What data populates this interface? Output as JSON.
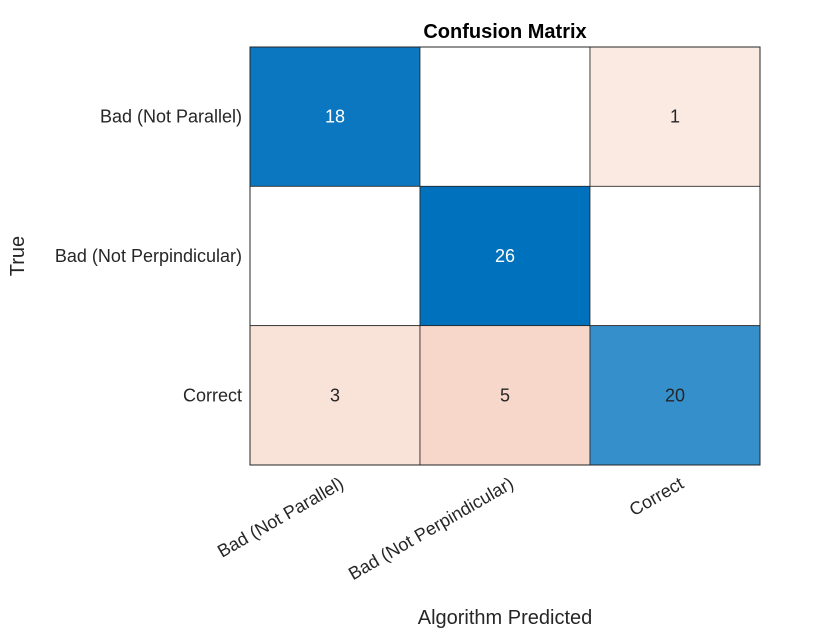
{
  "chart_data": {
    "type": "heatmap",
    "title": "Confusion Matrix",
    "xlabel": "Algorithm Predicted",
    "ylabel": "True",
    "row_labels": [
      "Bad (Not Parallel)",
      "Bad (Not Perpindicular)",
      "Correct"
    ],
    "col_labels": [
      "Bad (Not Parallel)",
      "Bad (Not Perpindicular)",
      "Correct"
    ],
    "values": [
      [
        18,
        null,
        1
      ],
      [
        null,
        26,
        null
      ],
      [
        3,
        5,
        20
      ]
    ],
    "colors": {
      "diagonal_max": "#0072BD",
      "off_diagonal_max": "#D95319",
      "grid": "#262626"
    }
  }
}
